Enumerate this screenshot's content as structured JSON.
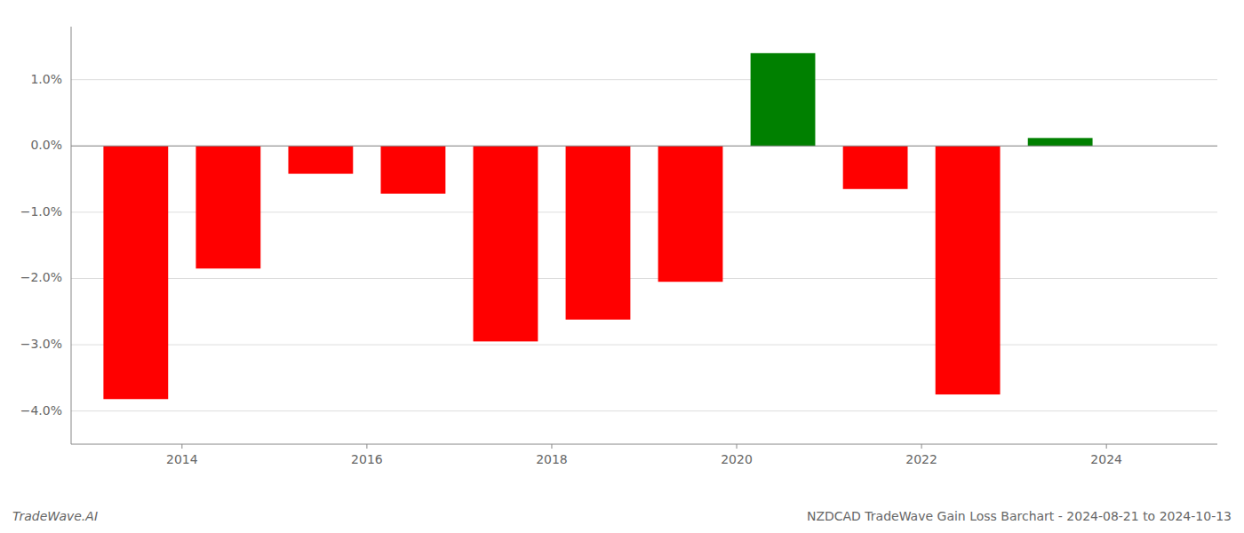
{
  "chart_data": {
    "type": "bar",
    "title": "NZDCAD TradeWave Gain Loss Barchart - 2024-08-21 to 2024-10-13",
    "annotations": [
      "TradeWave.AI"
    ],
    "x": [
      2013.5,
      2014.5,
      2015.5,
      2016.5,
      2017.5,
      2018.5,
      2019.5,
      2020.5,
      2021.5,
      2022.5,
      2023.5
    ],
    "values": [
      -3.82,
      -1.85,
      -0.42,
      -0.72,
      -2.95,
      -2.62,
      -2.05,
      1.4,
      -0.65,
      -3.75,
      0.12
    ],
    "colors": [
      "#ff0000",
      "#ff0000",
      "#ff0000",
      "#ff0000",
      "#ff0000",
      "#ff0000",
      "#ff0000",
      "#008000",
      "#ff0000",
      "#ff0000",
      "#008000"
    ],
    "xlim": [
      2012.8,
      2025.2
    ],
    "xticks": [
      2014,
      2016,
      2018,
      2020,
      2022,
      2024
    ],
    "ylim": [
      -4.5,
      1.8
    ],
    "yticks": [
      {
        "value": -4.0,
        "label": "−4.0%"
      },
      {
        "value": -3.0,
        "label": "−3.0%"
      },
      {
        "value": -2.0,
        "label": "−2.0%"
      },
      {
        "value": -1.0,
        "label": "−1.0%"
      },
      {
        "value": 0.0,
        "label": "0.0%"
      },
      {
        "value": 1.0,
        "label": "1.0%"
      }
    ],
    "grid": true
  }
}
